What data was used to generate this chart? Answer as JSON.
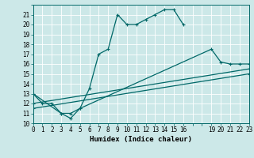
{
  "xlabel": "Humidex (Indice chaleur)",
  "bg_color": "#cce8e8",
  "grid_color": "#ffffff",
  "line_color": "#006868",
  "xlim": [
    0,
    23
  ],
  "ylim": [
    10,
    22
  ],
  "xticks": [
    0,
    1,
    2,
    3,
    4,
    5,
    6,
    7,
    8,
    9,
    10,
    11,
    12,
    13,
    14,
    15,
    16,
    19,
    20,
    21,
    22,
    23
  ],
  "yticks": [
    10,
    11,
    12,
    13,
    14,
    15,
    16,
    17,
    18,
    19,
    20,
    21
  ],
  "lines": [
    {
      "x": [
        0,
        1,
        2,
        3,
        4,
        5,
        6,
        7,
        8,
        9,
        10,
        11,
        12,
        13,
        14,
        15,
        16
      ],
      "y": [
        13,
        12,
        12,
        11,
        10.5,
        11.5,
        13.5,
        17,
        17.5,
        21,
        20,
        20,
        20.5,
        21,
        21.5,
        21.5,
        20
      ]
    },
    {
      "x": [
        0,
        3,
        4,
        5,
        19,
        20,
        21,
        22,
        23
      ],
      "y": [
        13,
        11,
        11,
        11.5,
        17.5,
        16.2,
        16,
        16,
        16
      ]
    },
    {
      "x": [
        0,
        23
      ],
      "y": [
        12,
        15.5
      ]
    },
    {
      "x": [
        0,
        23
      ],
      "y": [
        11.5,
        15
      ]
    }
  ]
}
